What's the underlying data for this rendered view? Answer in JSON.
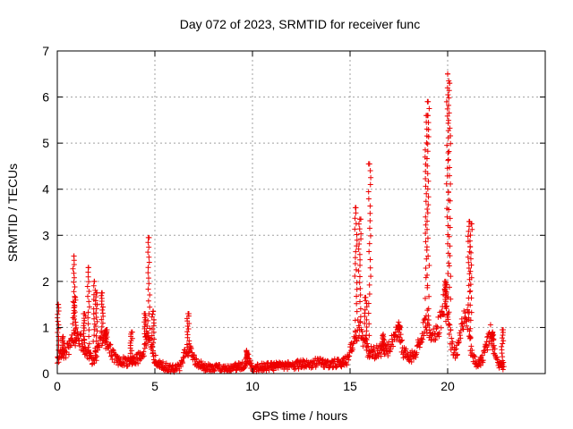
{
  "chart_data": {
    "type": "scatter",
    "title": "Day 072 of 2023, SRMTID for receiver func",
    "xlabel": "GPS time / hours",
    "ylabel": "SRMTID / TECUs",
    "xlim": [
      0,
      25
    ],
    "ylim": [
      0,
      7
    ],
    "xticks": [
      0,
      5,
      10,
      15,
      20
    ],
    "yticks": [
      0,
      1,
      2,
      3,
      4,
      5,
      6,
      7
    ],
    "grid": true,
    "marker": "+",
    "color": "#ee0000",
    "baseline": [
      [
        0.0,
        0.35
      ],
      [
        0.4,
        0.45
      ],
      [
        0.6,
        0.55
      ],
      [
        0.8,
        0.7
      ],
      [
        1.0,
        0.85
      ],
      [
        1.2,
        0.7
      ],
      [
        1.5,
        0.5
      ],
      [
        1.8,
        0.3
      ],
      [
        2.0,
        0.4
      ],
      [
        2.3,
        0.8
      ],
      [
        2.6,
        0.6
      ],
      [
        3.0,
        0.3
      ],
      [
        3.5,
        0.25
      ],
      [
        4.0,
        0.3
      ],
      [
        4.4,
        0.4
      ],
      [
        4.6,
        0.9
      ],
      [
        4.8,
        0.6
      ],
      [
        5.0,
        0.3
      ],
      [
        5.5,
        0.15
      ],
      [
        6.0,
        0.1
      ],
      [
        6.3,
        0.15
      ],
      [
        6.6,
        0.55
      ],
      [
        6.8,
        0.5
      ],
      [
        7.0,
        0.3
      ],
      [
        7.5,
        0.15
      ],
      [
        8.0,
        0.12
      ],
      [
        9.0,
        0.12
      ],
      [
        9.6,
        0.2
      ],
      [
        9.8,
        0.35
      ],
      [
        10.0,
        0.1
      ],
      [
        10.5,
        0.15
      ],
      [
        11.0,
        0.15
      ],
      [
        12.0,
        0.18
      ],
      [
        13.0,
        0.22
      ],
      [
        13.5,
        0.25
      ],
      [
        14.0,
        0.22
      ],
      [
        14.5,
        0.22
      ],
      [
        14.9,
        0.3
      ],
      [
        15.1,
        0.6
      ],
      [
        15.3,
        0.9
      ],
      [
        15.5,
        1.0
      ],
      [
        15.7,
        0.7
      ],
      [
        15.9,
        0.5
      ],
      [
        16.2,
        0.45
      ],
      [
        16.6,
        0.5
      ],
      [
        17.0,
        0.55
      ],
      [
        17.3,
        0.8
      ],
      [
        17.5,
        0.95
      ],
      [
        17.7,
        0.5
      ],
      [
        18.0,
        0.35
      ],
      [
        18.3,
        0.4
      ],
      [
        18.6,
        0.8
      ],
      [
        18.8,
        1.0
      ],
      [
        19.0,
        1.05
      ],
      [
        19.2,
        0.9
      ],
      [
        19.4,
        0.85
      ],
      [
        19.6,
        1.1
      ],
      [
        19.8,
        1.6
      ],
      [
        20.0,
        1.3
      ],
      [
        20.2,
        0.6
      ],
      [
        20.4,
        0.4
      ],
      [
        20.6,
        0.7
      ],
      [
        20.8,
        1.2
      ],
      [
        21.0,
        1.35
      ],
      [
        21.2,
        0.5
      ],
      [
        21.5,
        0.2
      ],
      [
        21.8,
        0.3
      ],
      [
        22.0,
        0.6
      ],
      [
        22.2,
        0.9
      ],
      [
        22.4,
        0.5
      ],
      [
        22.6,
        0.2
      ],
      [
        22.9,
        0.15
      ]
    ],
    "spikes": [
      {
        "x": 0.05,
        "peak": 1.5
      },
      {
        "x": 0.3,
        "peak": 0.8
      },
      {
        "x": 0.85,
        "peak": 2.55
      },
      {
        "x": 0.9,
        "peak": 1.65
      },
      {
        "x": 1.4,
        "peak": 1.3
      },
      {
        "x": 1.6,
        "peak": 2.3
      },
      {
        "x": 1.9,
        "peak": 2.0
      },
      {
        "x": 2.0,
        "peak": 1.75
      },
      {
        "x": 2.3,
        "peak": 1.75
      },
      {
        "x": 2.5,
        "peak": 0.95
      },
      {
        "x": 3.8,
        "peak": 0.9
      },
      {
        "x": 4.5,
        "peak": 1.3
      },
      {
        "x": 4.7,
        "peak": 2.95
      },
      {
        "x": 4.9,
        "peak": 1.35
      },
      {
        "x": 6.7,
        "peak": 1.3
      },
      {
        "x": 9.7,
        "peak": 0.5
      },
      {
        "x": 15.3,
        "peak": 3.6
      },
      {
        "x": 15.5,
        "peak": 3.35
      },
      {
        "x": 15.8,
        "peak": 1.65
      },
      {
        "x": 16.0,
        "peak": 4.55
      },
      {
        "x": 16.7,
        "peak": 0.85
      },
      {
        "x": 17.5,
        "peak": 1.05
      },
      {
        "x": 18.9,
        "peak": 5.6
      },
      {
        "x": 19.0,
        "peak": 5.9
      },
      {
        "x": 19.9,
        "peak": 2.0
      },
      {
        "x": 20.0,
        "peak": 6.5
      },
      {
        "x": 20.1,
        "peak": 6.3
      },
      {
        "x": 21.1,
        "peak": 3.3
      },
      {
        "x": 21.2,
        "peak": 3.25
      },
      {
        "x": 22.3,
        "peak": 0.9
      },
      {
        "x": 22.8,
        "peak": 0.95
      }
    ]
  }
}
